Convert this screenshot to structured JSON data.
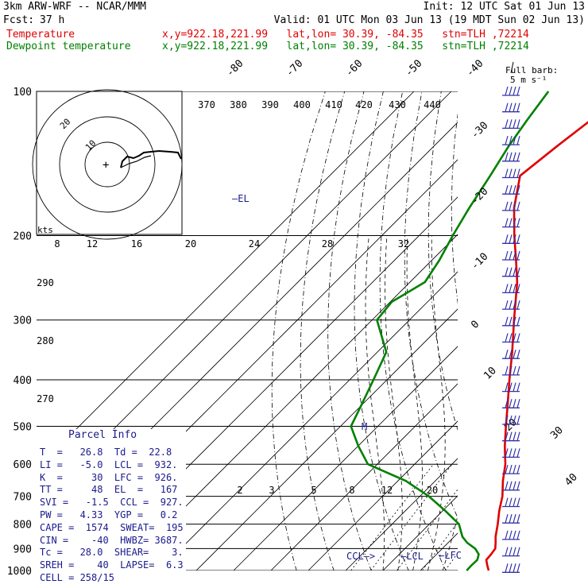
{
  "header": {
    "model": "3km ARW-WRF -- NCAR/MMM",
    "init": "Init: 12 UTC Sat 01 Jun 13",
    "fcst_label": "Fcst:",
    "fcst_hours": "37 h",
    "valid": "Valid: 01 UTC Mon 03 Jun 13 (19 MDT Sun 02 Jun 13)",
    "temp_label": "Temperature",
    "temp_info": "x,y=922.18,221.99   lat,lon= 30.39, -84.35   stn=TLH ,72214",
    "dew_label": "Dewpoint temperature",
    "dew_info": "x,y=922.18,221.99   lat,lon= 30.39, -84.35   stn=TLH ,72214"
  },
  "colors": {
    "temperature": "#e00000",
    "dewpoint": "#008000",
    "annotation": "#1a1a8c",
    "wind_barb": "#3333aa"
  },
  "barb_title": "Full barb:",
  "barb_units": "5 m s⁻¹",
  "parcel_info": {
    "title": "Parcel Info",
    "rows": [
      "T  =   26.8  Td =  22.8",
      "LI =   -5.0  LCL =  932.",
      "K  =     30  LFC =  926.",
      "TT =     48  EL  =   167",
      "SVI =   -1.5  CCL =  927.",
      "PW =   4.33  YGP =   0.2",
      "CAPE =  1574  SWEAT=  195",
      "CIN =    -40  HWBZ= 3687.",
      "Tc =   28.0  SHEAR=    3.",
      "SREH =    40  LAPSE=  6.3",
      "CELL = 258/15"
    ]
  },
  "annotations": {
    "el": "EL",
    "ccl": "CCL",
    "lcl": "LCL",
    "lfc": "LFC",
    "mark": "M"
  },
  "hodograph": {
    "units": "kts",
    "rings": [
      "10",
      "20"
    ],
    "wind_kts": [
      [
        2,
        1
      ],
      [
        4,
        3
      ],
      [
        6,
        4
      ],
      [
        8,
        5
      ],
      [
        11,
        5
      ],
      [
        14,
        4
      ],
      [
        17,
        5
      ],
      [
        20,
        5
      ],
      [
        24,
        6
      ],
      [
        28,
        7
      ],
      [
        33,
        7
      ],
      [
        37,
        7
      ],
      [
        40,
        8
      ],
      [
        43,
        7
      ],
      [
        46,
        6
      ]
    ]
  },
  "chart_data": {
    "type": "line",
    "title": "",
    "y_axis": "pressure (hPa)",
    "pressure_levels": [
      "100",
      "200",
      "300",
      "400",
      "500",
      "600",
      "700",
      "800",
      "900",
      "1000"
    ],
    "ylim": [
      1000,
      100
    ],
    "x_axis": "temperature (°C), skewed",
    "isotherm_labels": [
      "-80",
      "-70",
      "-60",
      "-50",
      "-40",
      "-30",
      "-20",
      "-10",
      "0",
      "10",
      "20",
      "30",
      "40"
    ],
    "theta_labels": [
      "370",
      "380",
      "390",
      "400",
      "410",
      "420",
      "430",
      "440"
    ],
    "dry_adiabat_labels": [
      "290",
      "280",
      "270"
    ],
    "moist_adiabat_labels": [
      "8",
      "12",
      "16",
      "20",
      "24",
      "28",
      "32"
    ],
    "mixing_ratio_labels": [
      "2",
      "3",
      "5",
      "8",
      "12",
      "20"
    ],
    "grid": true,
    "series": [
      {
        "name": "Temperature",
        "p": [
          1000,
          975,
          950,
          925,
          900,
          875,
          850,
          800,
          750,
          700,
          650,
          600,
          550,
          500,
          450,
          400,
          350,
          300,
          250,
          225,
          200,
          175,
          150,
          130,
          115,
          100
        ],
        "t": [
          28.3,
          26.5,
          24.8,
          24.6,
          24.2,
          22.7,
          21.1,
          18.3,
          15.1,
          12.1,
          8.1,
          4.3,
          -0.7,
          -5.7,
          -11.1,
          -17.2,
          -23.9,
          -32.0,
          -41.3,
          -47.5,
          -54.5,
          -62.0,
          -69.0,
          -67.0,
          -65.0,
          -63.0
        ]
      },
      {
        "name": "Dewpoint temperature",
        "p": [
          1000,
          975,
          950,
          925,
          900,
          875,
          850,
          800,
          750,
          700,
          650,
          600,
          550,
          500,
          450,
          400,
          350,
          300,
          275,
          250,
          225,
          200,
          175,
          150,
          130,
          115,
          100
        ],
        "td": [
          22.4,
          22.3,
          22.4,
          21.3,
          18.8,
          15.1,
          12.2,
          7.9,
          0.6,
          -7.6,
          -17.9,
          -32.5,
          -39.9,
          -47.2,
          -50.2,
          -53.6,
          -57.6,
          -68.7,
          -69.6,
          -66.0,
          -68.0,
          -71.0,
          -74.0,
          -77.0,
          -80.0,
          -82.0,
          -84.0
        ]
      }
    ]
  }
}
